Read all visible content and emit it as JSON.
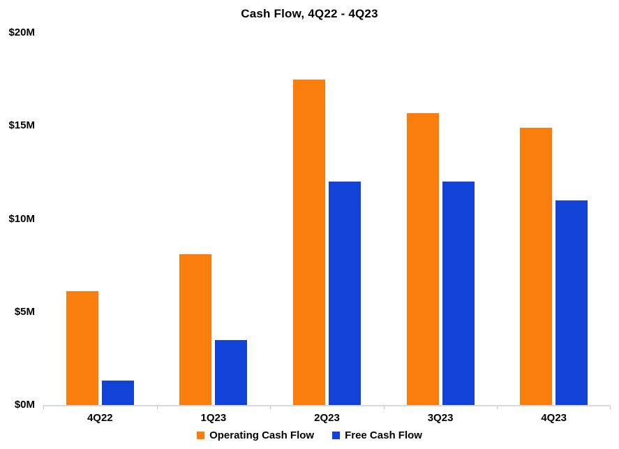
{
  "chart_data": {
    "type": "bar",
    "title": "Cash Flow, 4Q22 - 4Q23",
    "categories": [
      "4Q22",
      "1Q23",
      "2Q23",
      "3Q23",
      "4Q23"
    ],
    "series": [
      {
        "name": "Operating Cash Flow",
        "color": "#FA7E0D",
        "values": [
          6.1,
          8.1,
          17.5,
          15.7,
          14.9
        ]
      },
      {
        "name": "Free Cash Flow",
        "color": "#1343D6",
        "values": [
          1.3,
          3.5,
          12.0,
          12.0,
          11.0
        ]
      }
    ],
    "yticks": [
      {
        "value": 0,
        "label": "$0M"
      },
      {
        "value": 5,
        "label": "$5M"
      },
      {
        "value": 10,
        "label": "$10M"
      },
      {
        "value": 15,
        "label": "$15M"
      },
      {
        "value": 20,
        "label": "$20M"
      }
    ],
    "ylim": [
      0,
      20
    ],
    "grid": false,
    "legend_position": "bottom",
    "axis_color": "#d9d9d9",
    "tick_color": "#c9c9c9",
    "text_color": "#000000"
  }
}
